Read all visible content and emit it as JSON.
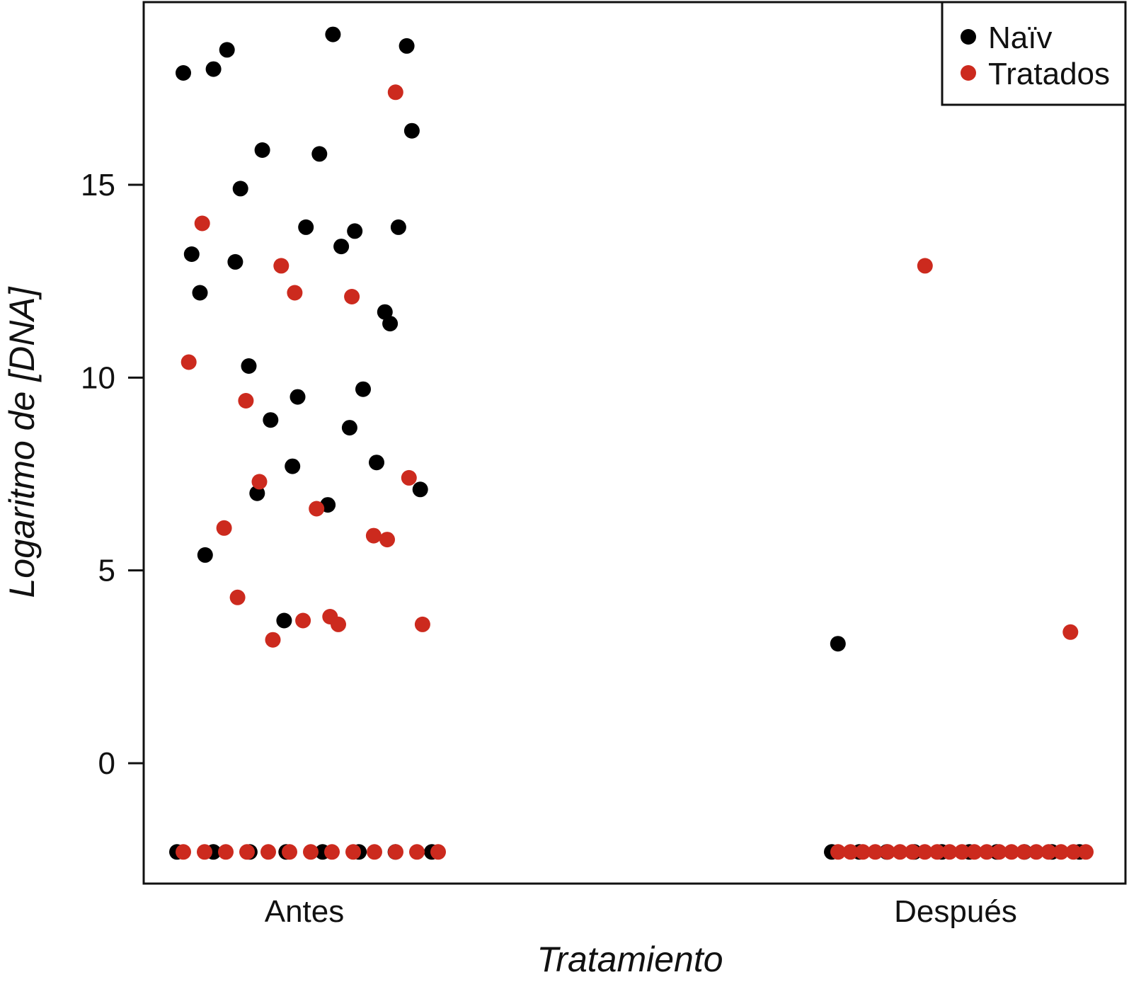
{
  "chart_data": {
    "type": "scatter",
    "title": "",
    "xlabel": "Tratamiento",
    "ylabel": "Logaritmo de [DNA]",
    "categories": [
      "Antes",
      "Después"
    ],
    "ylim": [
      -3.1,
      19.7
    ],
    "yticks": [
      0,
      5,
      10,
      15
    ],
    "grid": false,
    "legend_position": "top-right",
    "colors": {
      "Naïv": "#000000",
      "Tratados": "#cc2a1e"
    },
    "series": [
      {
        "name": "Naïv",
        "color": "#000000",
        "points": [
          {
            "category": "Antes",
            "y": 17.9
          },
          {
            "category": "Antes",
            "y": 18.9
          },
          {
            "category": "Antes",
            "y": 14.9
          },
          {
            "category": "Antes",
            "y": 11.4
          },
          {
            "category": "Antes",
            "y": 9.5
          },
          {
            "category": "Antes",
            "y": 5.4
          },
          {
            "category": "Antes",
            "y": 13.8
          },
          {
            "category": "Antes",
            "y": 15.9
          },
          {
            "category": "Antes",
            "y": 16.4
          },
          {
            "category": "Antes",
            "y": 15.8
          },
          {
            "category": "Antes",
            "y": 18.5
          },
          {
            "category": "Antes",
            "y": 7.8
          },
          {
            "category": "Antes",
            "y": 3.7
          },
          {
            "category": "Antes",
            "y": 13.2
          },
          {
            "category": "Antes",
            "y": 13.4
          },
          {
            "category": "Antes",
            "y": 10.3
          },
          {
            "category": "Antes",
            "y": 13.9
          },
          {
            "category": "Antes",
            "y": 13.9
          },
          {
            "category": "Antes",
            "y": 18.0
          },
          {
            "category": "Antes",
            "y": 9.7
          },
          {
            "category": "Antes",
            "y": 8.9
          },
          {
            "category": "Antes",
            "y": 7.1
          },
          {
            "category": "Antes",
            "y": 6.7
          },
          {
            "category": "Antes",
            "y": 13.0
          },
          {
            "category": "Antes",
            "y": 11.7
          },
          {
            "category": "Antes",
            "y": 7.7
          },
          {
            "category": "Antes",
            "y": 12.2
          },
          {
            "category": "Antes",
            "y": 8.7
          },
          {
            "category": "Antes",
            "y": 7.0
          },
          {
            "category": "Antes",
            "y": 18.6
          },
          {
            "category": "Antes",
            "y": -2.3
          },
          {
            "category": "Antes",
            "y": -2.3
          },
          {
            "category": "Antes",
            "y": -2.3
          },
          {
            "category": "Antes",
            "y": -2.3
          },
          {
            "category": "Antes",
            "y": -2.3
          },
          {
            "category": "Antes",
            "y": -2.3
          },
          {
            "category": "Antes",
            "y": -2.3
          },
          {
            "category": "Antes",
            "y": -2.3
          },
          {
            "category": "Después",
            "y": 3.1
          },
          {
            "category": "Después",
            "y": -2.3
          },
          {
            "category": "Después",
            "y": -2.3
          },
          {
            "category": "Después",
            "y": -2.3
          },
          {
            "category": "Después",
            "y": -2.3
          },
          {
            "category": "Después",
            "y": -2.3
          },
          {
            "category": "Después",
            "y": -2.3
          },
          {
            "category": "Después",
            "y": -2.3
          },
          {
            "category": "Después",
            "y": -2.3
          },
          {
            "category": "Después",
            "y": -2.3
          },
          {
            "category": "Después",
            "y": -2.3
          }
        ]
      },
      {
        "name": "Tratados",
        "color": "#cc2a1e",
        "points": [
          {
            "category": "Antes",
            "y": 3.2
          },
          {
            "category": "Antes",
            "y": 3.6
          },
          {
            "category": "Antes",
            "y": 3.8
          },
          {
            "category": "Antes",
            "y": 4.3
          },
          {
            "category": "Antes",
            "y": 5.8
          },
          {
            "category": "Antes",
            "y": 12.2
          },
          {
            "category": "Antes",
            "y": 14.0
          },
          {
            "category": "Antes",
            "y": 12.1
          },
          {
            "category": "Antes",
            "y": 7.3
          },
          {
            "category": "Antes",
            "y": 7.4
          },
          {
            "category": "Antes",
            "y": 6.6
          },
          {
            "category": "Antes",
            "y": 6.1
          },
          {
            "category": "Antes",
            "y": 5.9
          },
          {
            "category": "Antes",
            "y": 12.9
          },
          {
            "category": "Antes",
            "y": 10.4
          },
          {
            "category": "Antes",
            "y": 3.6
          },
          {
            "category": "Antes",
            "y": 9.4
          },
          {
            "category": "Antes",
            "y": 17.4
          },
          {
            "category": "Antes",
            "y": 3.7
          },
          {
            "category": "Antes",
            "y": -2.3
          },
          {
            "category": "Antes",
            "y": -2.3
          },
          {
            "category": "Antes",
            "y": -2.3
          },
          {
            "category": "Antes",
            "y": -2.3
          },
          {
            "category": "Antes",
            "y": -2.3
          },
          {
            "category": "Antes",
            "y": -2.3
          },
          {
            "category": "Antes",
            "y": -2.3
          },
          {
            "category": "Antes",
            "y": -2.3
          },
          {
            "category": "Antes",
            "y": -2.3
          },
          {
            "category": "Antes",
            "y": -2.3
          },
          {
            "category": "Antes",
            "y": -2.3
          },
          {
            "category": "Antes",
            "y": -2.3
          },
          {
            "category": "Antes",
            "y": -2.3
          },
          {
            "category": "Después",
            "y": 12.9
          },
          {
            "category": "Después",
            "y": 3.4
          },
          {
            "category": "Después",
            "y": -2.3
          },
          {
            "category": "Después",
            "y": -2.3
          },
          {
            "category": "Después",
            "y": -2.3
          },
          {
            "category": "Después",
            "y": -2.3
          },
          {
            "category": "Después",
            "y": -2.3
          },
          {
            "category": "Después",
            "y": -2.3
          },
          {
            "category": "Después",
            "y": -2.3
          },
          {
            "category": "Después",
            "y": -2.3
          },
          {
            "category": "Después",
            "y": -2.3
          },
          {
            "category": "Después",
            "y": -2.3
          },
          {
            "category": "Después",
            "y": -2.3
          },
          {
            "category": "Después",
            "y": -2.3
          },
          {
            "category": "Después",
            "y": -2.3
          },
          {
            "category": "Después",
            "y": -2.3
          },
          {
            "category": "Después",
            "y": -2.3
          },
          {
            "category": "Después",
            "y": -2.3
          },
          {
            "category": "Después",
            "y": -2.3
          },
          {
            "category": "Después",
            "y": -2.3
          },
          {
            "category": "Después",
            "y": -2.3
          },
          {
            "category": "Después",
            "y": -2.3
          },
          {
            "category": "Después",
            "y": -2.3
          }
        ]
      }
    ]
  }
}
